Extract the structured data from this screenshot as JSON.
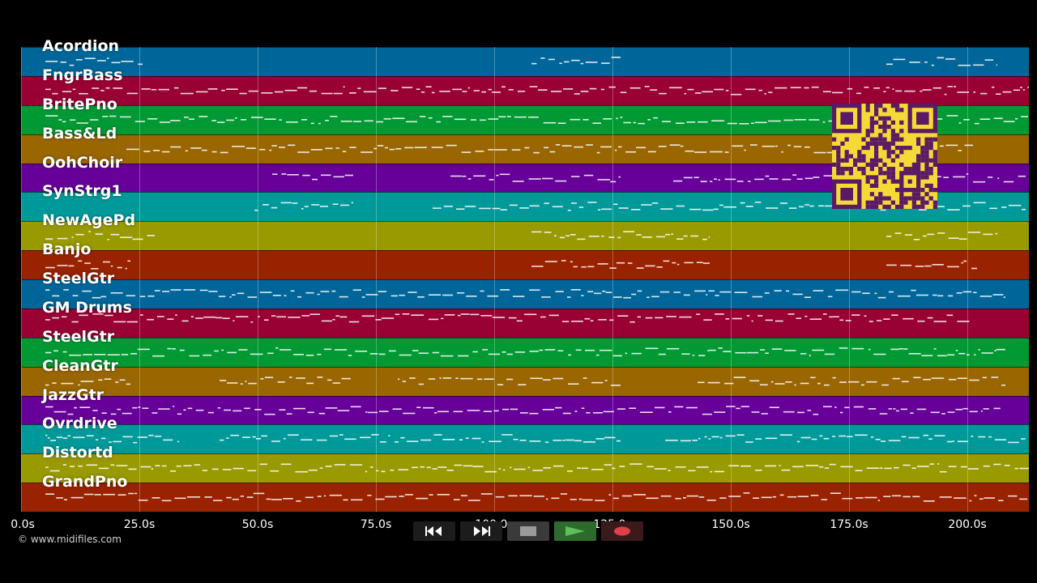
{
  "tracks": [
    {
      "name": "Acordion",
      "color": "#006699"
    },
    {
      "name": "FngrBass",
      "color": "#990033"
    },
    {
      "name": "BritePno",
      "color": "#009933"
    },
    {
      "name": "Bass&Ld",
      "color": "#996600"
    },
    {
      "name": "OohChoir",
      "color": "#660099"
    },
    {
      "name": "SynStrg1",
      "color": "#009999"
    },
    {
      "name": "NewAgePd",
      "color": "#999900"
    },
    {
      "name": "Banjo",
      "color": "#992200"
    },
    {
      "name": "SteelGtr",
      "color": "#006699"
    },
    {
      "name": "GM Drums",
      "color": "#990033"
    },
    {
      "name": "SteelGtr",
      "color": "#009933"
    },
    {
      "name": "CleanGtr",
      "color": "#996600"
    },
    {
      "name": "JazzGtr",
      "color": "#660099"
    },
    {
      "name": "Ovrdrive",
      "color": "#009999"
    },
    {
      "name": "Distortd",
      "color": "#999900"
    },
    {
      "name": "GrandPno",
      "color": "#992200"
    }
  ],
  "time_axis": {
    "ticks": [
      "0.0s",
      "25.0s",
      "50.0s",
      "75.0s",
      "100.0s",
      "125.0s",
      "150.0s",
      "175.0s",
      "200.0s"
    ],
    "tick_seconds": [
      0,
      25,
      50,
      75,
      100,
      125,
      150,
      175,
      200
    ],
    "max_seconds": 213
  },
  "copyright": "© www.midifiles.com",
  "transport": {
    "rewind": "rewind-icon",
    "fast_forward": "fast-forward-icon",
    "stop": "stop-icon",
    "play": "play-icon",
    "record": "record-icon",
    "play_color": "#5fbf5f",
    "record_color": "#e0404a"
  },
  "qr_colors": {
    "background": "#f5d936",
    "modules": "#5a1a66"
  }
}
